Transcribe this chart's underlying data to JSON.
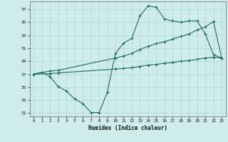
{
  "xlabel": "Humidex (Indice chaleur)",
  "xlim": [
    -0.5,
    23.5
  ],
  "ylim": [
    20.5,
    38.2
  ],
  "xticks": [
    0,
    1,
    2,
    3,
    4,
    5,
    6,
    7,
    8,
    9,
    10,
    11,
    12,
    13,
    14,
    15,
    16,
    17,
    18,
    19,
    20,
    21,
    22,
    23
  ],
  "yticks": [
    21,
    23,
    25,
    27,
    29,
    31,
    33,
    35,
    37
  ],
  "bg_color": "#ceecea",
  "grid_color": "#aed6d2",
  "line_color": "#1e6b5a",
  "line1_x": [
    0,
    1,
    2,
    3,
    4,
    5,
    6,
    7,
    8,
    9,
    10,
    11,
    12,
    13,
    14,
    15,
    16,
    17,
    18,
    19,
    20,
    21,
    22,
    23
  ],
  "line1_y": [
    27.0,
    27.3,
    26.6,
    25.1,
    24.4,
    23.2,
    22.5,
    21.1,
    21.1,
    24.2,
    30.2,
    31.8,
    32.5,
    36.0,
    37.5,
    37.3,
    35.5,
    35.2,
    35.0,
    35.2,
    35.2,
    33.2,
    30.0,
    29.5
  ],
  "line2_x": [
    0,
    2,
    3,
    10,
    11,
    12,
    13,
    14,
    15,
    16,
    17,
    18,
    19,
    20,
    21,
    22,
    23
  ],
  "line2_y": [
    27.0,
    27.5,
    27.6,
    29.5,
    29.8,
    30.2,
    30.8,
    31.3,
    31.7,
    32.0,
    32.4,
    32.8,
    33.2,
    33.8,
    34.3,
    35.1,
    29.5
  ],
  "line3_x": [
    0,
    2,
    3,
    10,
    11,
    12,
    13,
    14,
    15,
    16,
    17,
    18,
    19,
    20,
    21,
    22,
    23
  ],
  "line3_y": [
    27.0,
    27.1,
    27.2,
    27.8,
    27.9,
    28.0,
    28.2,
    28.4,
    28.5,
    28.7,
    28.8,
    29.0,
    29.1,
    29.3,
    29.5,
    29.6,
    29.5
  ]
}
